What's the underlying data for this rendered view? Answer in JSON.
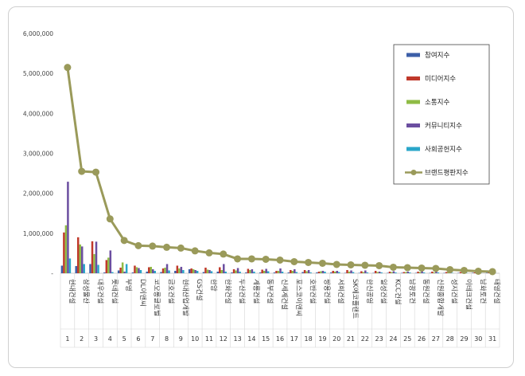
{
  "chart_data": {
    "type": "bar",
    "title": "",
    "xlabel": "",
    "ylabel": "",
    "ylim": [
      0,
      6000000
    ],
    "yticks": [
      "-",
      "1,000,000",
      "2,000,000",
      "3,000,000",
      "4,000,000",
      "5,000,000",
      "6,000,000"
    ],
    "categories": [
      "현대건설",
      "삼성물산",
      "대우건설",
      "롯데건설",
      "부영",
      "DL이앤씨",
      "코오롱글로벌",
      "금호건설",
      "현대산업개발",
      "GS건설",
      "한양",
      "한화건설",
      "두산건설",
      "계룡건설",
      "동부건설",
      "신세계건설",
      "포스코이앤씨",
      "호반건설",
      "쌍용건설",
      "서희건설",
      "SK에코플랜트",
      "한신공영",
      "일성건설",
      "KCC건설",
      "남광토건",
      "동원건설",
      "신원종합개발",
      "성지건설",
      "이테크건설",
      "남화토건",
      "태영건설"
    ],
    "ranks": [
      "1",
      "2",
      "3",
      "4",
      "5",
      "6",
      "7",
      "8",
      "9",
      "10",
      "11",
      "12",
      "13",
      "14",
      "15",
      "16",
      "17",
      "18",
      "19",
      "20",
      "21",
      "22",
      "23",
      "24",
      "25",
      "26",
      "27",
      "28",
      "29",
      "30",
      "31"
    ],
    "grid": false,
    "legend_position": "right",
    "series": [
      {
        "name": "참여지수",
        "kind": "bar",
        "color": "#3c5fa8",
        "values": [
          190000,
          180000,
          230000,
          20000,
          70000,
          20000,
          40000,
          30000,
          60000,
          100000,
          30000,
          40000,
          20000,
          20000,
          20000,
          20000,
          20000,
          30000,
          20000,
          20000,
          10000,
          10000,
          10000,
          10000,
          10000,
          10000,
          10000,
          10000,
          10000,
          10000,
          10000
        ]
      },
      {
        "name": "미디어지수",
        "kind": "bar",
        "color": "#c0392b",
        "values": [
          1020000,
          900000,
          800000,
          330000,
          140000,
          190000,
          150000,
          120000,
          190000,
          120000,
          140000,
          150000,
          100000,
          110000,
          90000,
          60000,
          80000,
          80000,
          40000,
          60000,
          80000,
          50000,
          60000,
          40000,
          30000,
          40000,
          40000,
          30000,
          30000,
          20000,
          30000
        ]
      },
      {
        "name": "소통지수",
        "kind": "bar",
        "color": "#8fbc45",
        "values": [
          1200000,
          720000,
          480000,
          390000,
          270000,
          150000,
          160000,
          140000,
          120000,
          100000,
          90000,
          80000,
          70000,
          80000,
          60000,
          60000,
          60000,
          50000,
          50000,
          40000,
          40000,
          30000,
          30000,
          30000,
          30000,
          30000,
          20000,
          20000,
          20000,
          20000,
          10000
        ]
      },
      {
        "name": "커뮤니티지수",
        "kind": "bar",
        "color": "#6b4ea0",
        "values": [
          2290000,
          670000,
          790000,
          570000,
          40000,
          130000,
          100000,
          230000,
          160000,
          80000,
          80000,
          230000,
          130000,
          100000,
          110000,
          120000,
          100000,
          80000,
          60000,
          60000,
          70000,
          70000,
          40000,
          50000,
          40000,
          60000,
          50000,
          40000,
          30000,
          20000,
          30000
        ]
      },
      {
        "name": "사회공헌지수",
        "kind": "bar",
        "color": "#2aa6c9",
        "values": [
          370000,
          230000,
          210000,
          30000,
          230000,
          80000,
          60000,
          70000,
          80000,
          60000,
          50000,
          40000,
          40000,
          40000,
          50000,
          40000,
          30000,
          20000,
          40000,
          30000,
          30000,
          20000,
          20000,
          20000,
          20000,
          20000,
          20000,
          10000,
          10000,
          10000,
          10000
        ]
      },
      {
        "name": "브랜드평판지수",
        "kind": "line",
        "color": "#9a9a5a",
        "values": [
          5150000,
          2550000,
          2530000,
          1360000,
          820000,
          690000,
          680000,
          650000,
          630000,
          560000,
          510000,
          480000,
          360000,
          360000,
          350000,
          330000,
          290000,
          270000,
          250000,
          220000,
          210000,
          200000,
          190000,
          150000,
          140000,
          130000,
          120000,
          90000,
          70000,
          50000,
          40000
        ]
      }
    ]
  }
}
